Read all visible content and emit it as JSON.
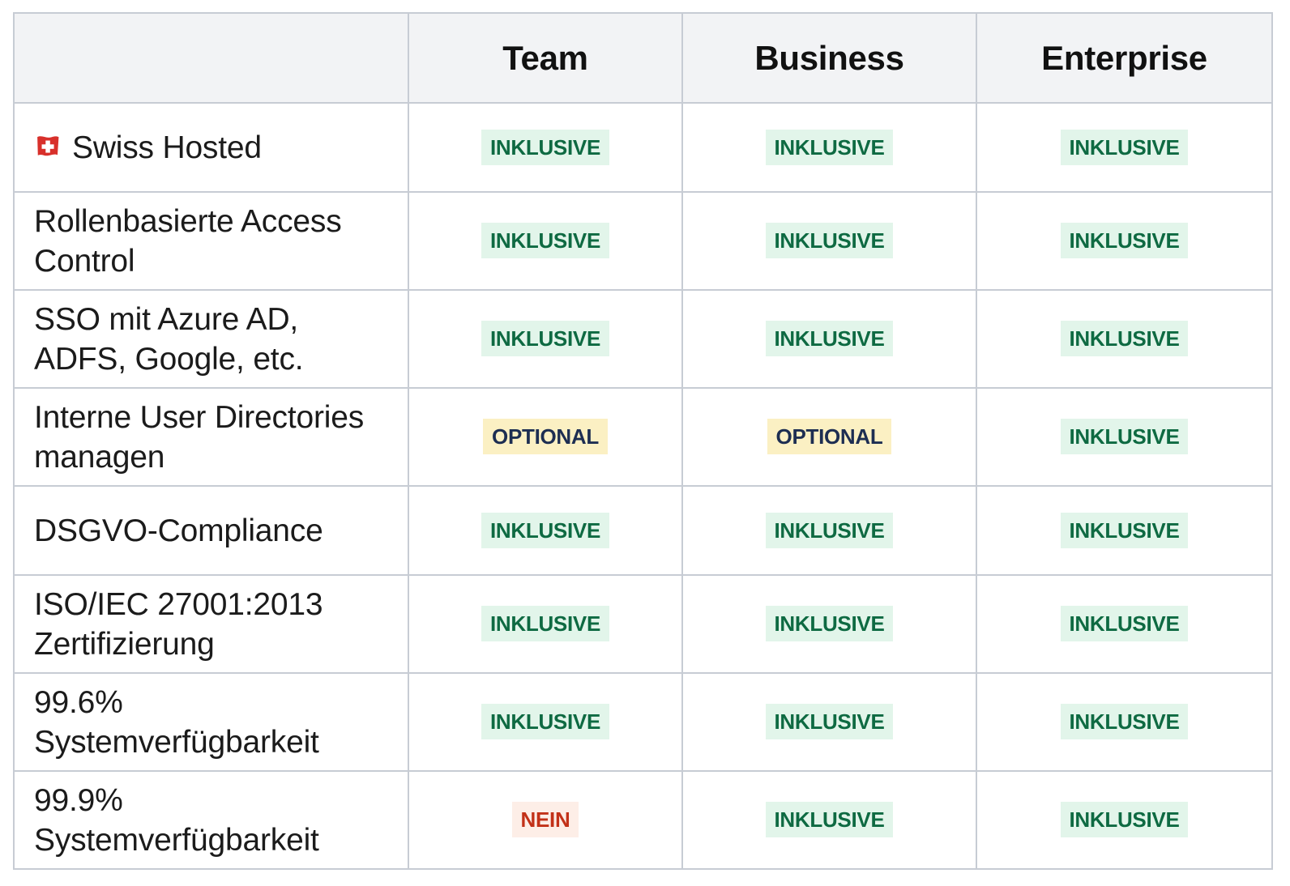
{
  "page": {
    "background_color": "#ffffff"
  },
  "table": {
    "border_color": "#c7ccd4",
    "header_bg_color": "#f2f3f5",
    "header_text_color": "#111111",
    "feature_text_color": "#1b1b1b",
    "columns": [
      "",
      "Team",
      "Business",
      "Enterprise"
    ],
    "rows": [
      {
        "feature": "Swiss Hosted",
        "icon": "swiss-flag",
        "values": [
          {
            "label": "INKLUSIVE",
            "type": "inklusive"
          },
          {
            "label": "INKLUSIVE",
            "type": "inklusive"
          },
          {
            "label": "INKLUSIVE",
            "type": "inklusive"
          }
        ]
      },
      {
        "feature": "Rollenbasierte Access Control",
        "icon": null,
        "values": [
          {
            "label": "INKLUSIVE",
            "type": "inklusive"
          },
          {
            "label": "INKLUSIVE",
            "type": "inklusive"
          },
          {
            "label": "INKLUSIVE",
            "type": "inklusive"
          }
        ]
      },
      {
        "feature": "SSO mit Azure AD, ADFS, Google, etc.",
        "icon": null,
        "values": [
          {
            "label": "INKLUSIVE",
            "type": "inklusive"
          },
          {
            "label": "INKLUSIVE",
            "type": "inklusive"
          },
          {
            "label": "INKLUSIVE",
            "type": "inklusive"
          }
        ]
      },
      {
        "feature": "Interne User Directories managen",
        "icon": null,
        "values": [
          {
            "label": "OPTIONAL",
            "type": "optional"
          },
          {
            "label": "OPTIONAL",
            "type": "optional"
          },
          {
            "label": "INKLUSIVE",
            "type": "inklusive"
          }
        ]
      },
      {
        "feature": "DSGVO-Compliance",
        "icon": null,
        "values": [
          {
            "label": "INKLUSIVE",
            "type": "inklusive"
          },
          {
            "label": "INKLUSIVE",
            "type": "inklusive"
          },
          {
            "label": "INKLUSIVE",
            "type": "inklusive"
          }
        ]
      },
      {
        "feature": "ISO/IEC 27001:2013 Zertifizierung",
        "icon": null,
        "values": [
          {
            "label": "INKLUSIVE",
            "type": "inklusive"
          },
          {
            "label": "INKLUSIVE",
            "type": "inklusive"
          },
          {
            "label": "INKLUSIVE",
            "type": "inklusive"
          }
        ]
      },
      {
        "feature": "99.6% Systemverfügbarkeit",
        "icon": null,
        "values": [
          {
            "label": "INKLUSIVE",
            "type": "inklusive"
          },
          {
            "label": "INKLUSIVE",
            "type": "inklusive"
          },
          {
            "label": "INKLUSIVE",
            "type": "inklusive"
          }
        ]
      },
      {
        "feature": "99.9% Systemverfügbarkeit",
        "icon": null,
        "values": [
          {
            "label": "NEIN",
            "type": "nein"
          },
          {
            "label": "INKLUSIVE",
            "type": "inklusive"
          },
          {
            "label": "INKLUSIVE",
            "type": "inklusive"
          }
        ]
      }
    ]
  },
  "badge_styles": {
    "inklusive": {
      "text_color": "#0e6a42",
      "bg_color": "#e2f5ea"
    },
    "optional": {
      "text_color": "#1d2e52",
      "bg_color": "#fbf0c3"
    },
    "nein": {
      "text_color": "#c23118",
      "bg_color": "#fdeee7"
    }
  },
  "icons": {
    "swiss_flag": {
      "flag_color": "#d8302b",
      "cross_color": "#ffffff"
    }
  }
}
